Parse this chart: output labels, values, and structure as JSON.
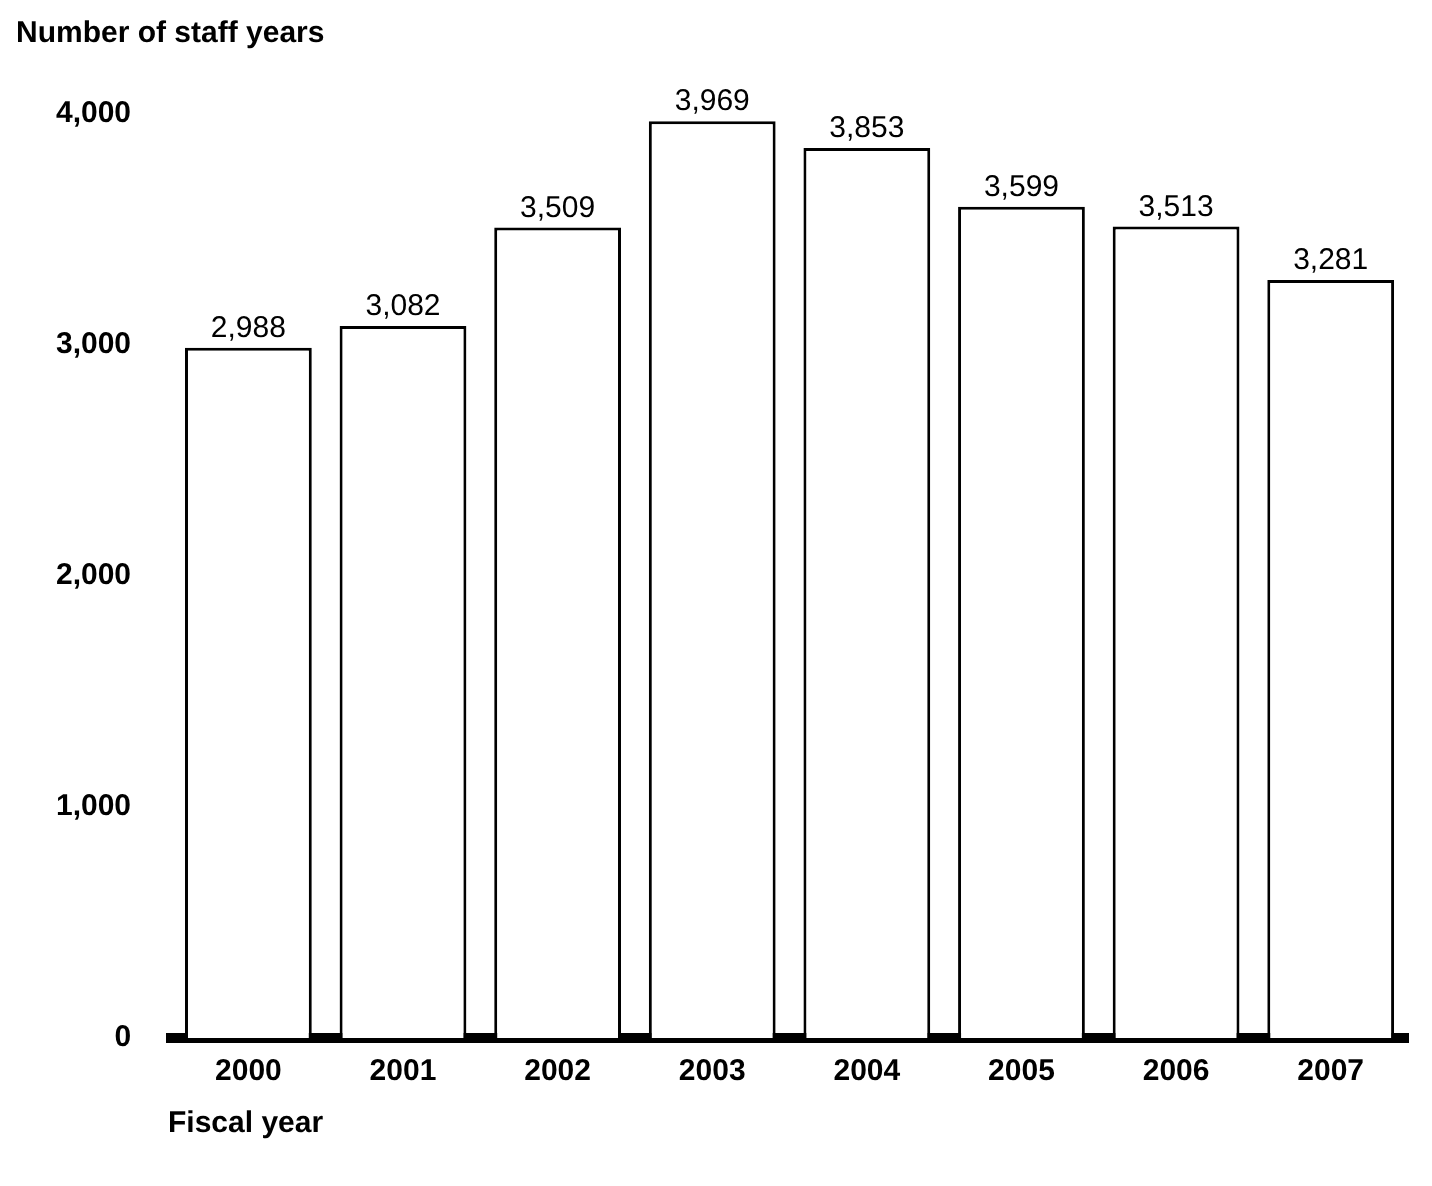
{
  "chart_data": {
    "type": "bar",
    "ylabel": "Number of staff years",
    "xlabel": "Fiscal year",
    "categories": [
      "2000",
      "2001",
      "2002",
      "2003",
      "2004",
      "2005",
      "2006",
      "2007"
    ],
    "values": [
      2988,
      3082,
      3509,
      3969,
      3853,
      3599,
      3513,
      3281
    ],
    "color": "#ffffff",
    "ylim": [
      0,
      4000
    ],
    "yticks": [
      {
        "value": 0,
        "label": "0"
      },
      {
        "value": 1000,
        "label": "1,000"
      },
      {
        "value": 2000,
        "label": "2,000"
      },
      {
        "value": 3000,
        "label": "3,000"
      },
      {
        "value": 4000,
        "label": "4,000"
      }
    ],
    "value_labels": [
      "2,988",
      "3,082",
      "3,509",
      "3,969",
      "3,853",
      "3,599",
      "3,513",
      "3,281"
    ],
    "grid": false,
    "legend": false
  }
}
